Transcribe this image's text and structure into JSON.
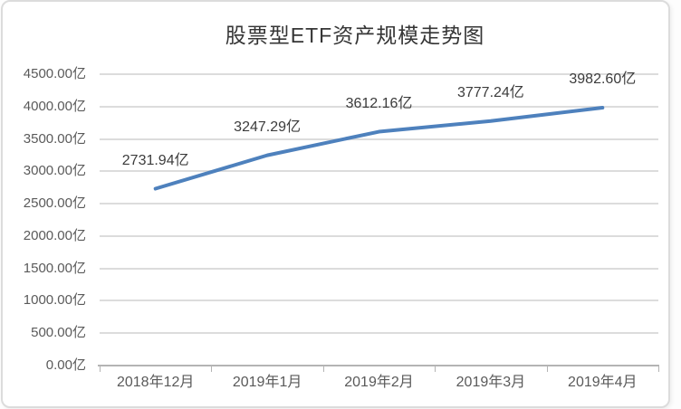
{
  "chart_data": {
    "type": "line",
    "title": "股票型ETF资产规模走势图",
    "categories": [
      "2018年12月",
      "2019年1月",
      "2019年2月",
      "2019年3月",
      "2019年4月"
    ],
    "values": [
      2731.94,
      3247.29,
      3612.16,
      3777.24,
      3982.6
    ],
    "data_labels": [
      "2731.94亿",
      "3247.29亿",
      "3612.16亿",
      "3777.24亿",
      "3982.60亿"
    ],
    "y_ticks": [
      {
        "value": 4500,
        "label": "4500.00亿"
      },
      {
        "value": 4000,
        "label": "4000.00亿"
      },
      {
        "value": 3500,
        "label": "3500.00亿"
      },
      {
        "value": 3000,
        "label": "3000.00亿"
      },
      {
        "value": 2500,
        "label": "2500.00亿"
      },
      {
        "value": 2000,
        "label": "2000.00亿"
      },
      {
        "value": 1500,
        "label": "1500.00亿"
      },
      {
        "value": 1000,
        "label": "1000.00亿"
      },
      {
        "value": 500,
        "label": "500.00亿"
      },
      {
        "value": 0,
        "label": "0.00亿"
      }
    ],
    "ylim": [
      0,
      4500
    ],
    "xlabel": "",
    "ylabel": "",
    "grid": true,
    "legend": "none",
    "unit_suffix": "亿",
    "styles": {
      "line_color": "#4e81bd",
      "gridline_color": "#dcdcdc",
      "axis_color": "#b4b4b4",
      "tick_label_color": "#5a5a5a",
      "data_label_color": "#3c3c3c",
      "title_color": "#353535"
    }
  }
}
